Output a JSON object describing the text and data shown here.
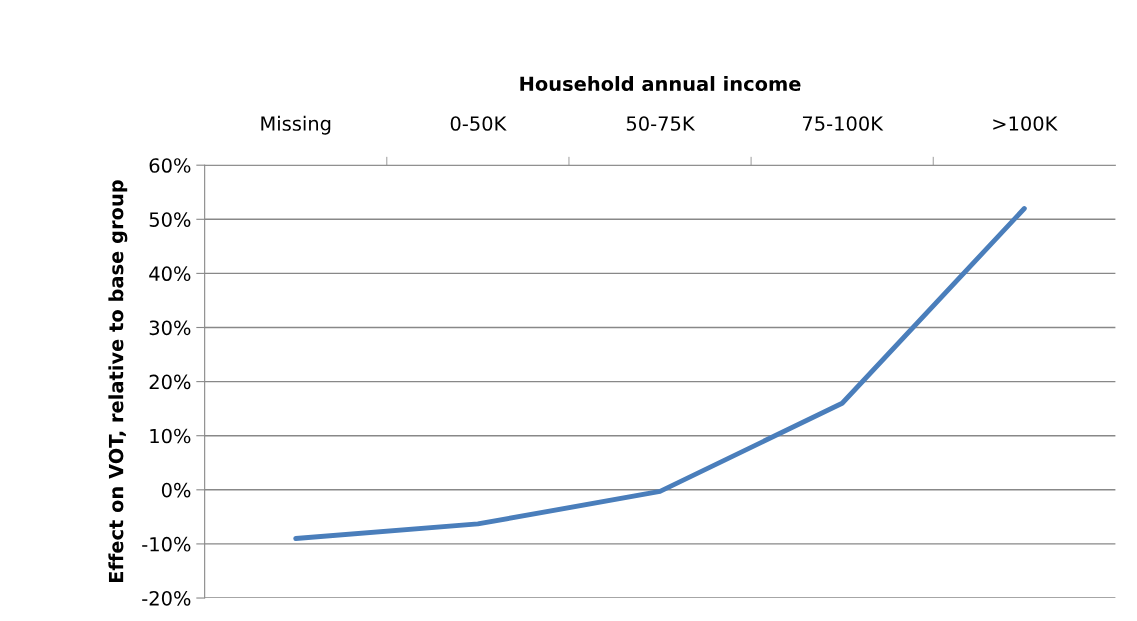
{
  "chart_data": {
    "type": "line",
    "xlabel": "Household annual income",
    "ylabel": "Effect on VOT, relative to base group",
    "categories": [
      "Missing",
      "0-50K",
      "50-75K",
      "75-100K",
      ">100K"
    ],
    "series": [
      {
        "color": "#4a7ebb",
        "values": [
          -9,
          -6.3,
          -0.3,
          16,
          52
        ]
      }
    ],
    "ylim": [
      -20,
      60
    ],
    "yticks": [
      {
        "value": -20,
        "label": "-20%"
      },
      {
        "value": -10,
        "label": "-10%"
      },
      {
        "value": 0,
        "label": "0%"
      },
      {
        "value": 10,
        "label": "10%"
      },
      {
        "value": 20,
        "label": "20%"
      },
      {
        "value": 30,
        "label": "30%"
      },
      {
        "value": 40,
        "label": "40%"
      },
      {
        "value": 50,
        "label": "50%"
      },
      {
        "value": 60,
        "label": "60%"
      }
    ],
    "grid": "y",
    "legend": false,
    "marker": "none",
    "line_style": "solid"
  }
}
